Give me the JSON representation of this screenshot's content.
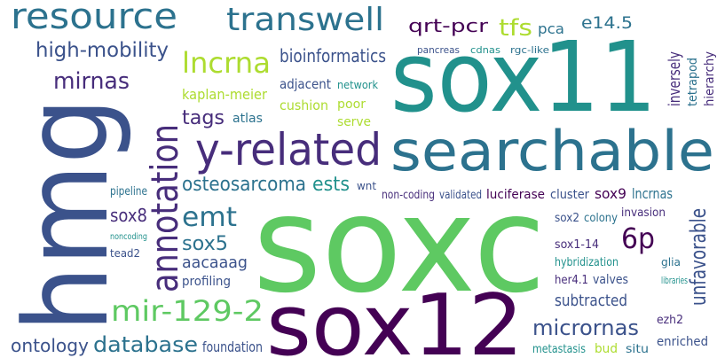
{
  "words": [
    "sox11",
    "soxc",
    "sox12",
    "hmg",
    "searchable",
    "y-related",
    "annotation",
    "resource",
    "transwell",
    "qrt-pcr",
    "tfs",
    "pca",
    "e14.5",
    "pancreas",
    "cdnas",
    "rgc-like",
    "high-mobility",
    "mirnas",
    "inversely",
    "tetrapod",
    "hierarchy",
    "lncrna",
    "bioinformatics",
    "kaplan-meier",
    "adjacent",
    "network",
    "cushion",
    "poor",
    "tags",
    "atlas",
    "serve",
    "osteosarcoma",
    "ests",
    "wnt",
    "non-coding",
    "validated",
    "luciferase",
    "cluster",
    "sox9",
    "lncrnas",
    "emt",
    "sox5",
    "aacaaag",
    "profiling",
    "pipeline",
    "sox8",
    "noncoding",
    "tead2",
    "mir-129-2",
    "ontology",
    "database",
    "foundation",
    "6p",
    "invasion",
    "unfavorable",
    "sox2",
    "colony",
    "hybridization",
    "her4.1",
    "valves",
    "subtracted",
    "micrornas",
    "metastasis",
    "bud",
    "situ",
    "enriched",
    "ezh2",
    "glia",
    "sox1-14",
    "libraries"
  ]
}
